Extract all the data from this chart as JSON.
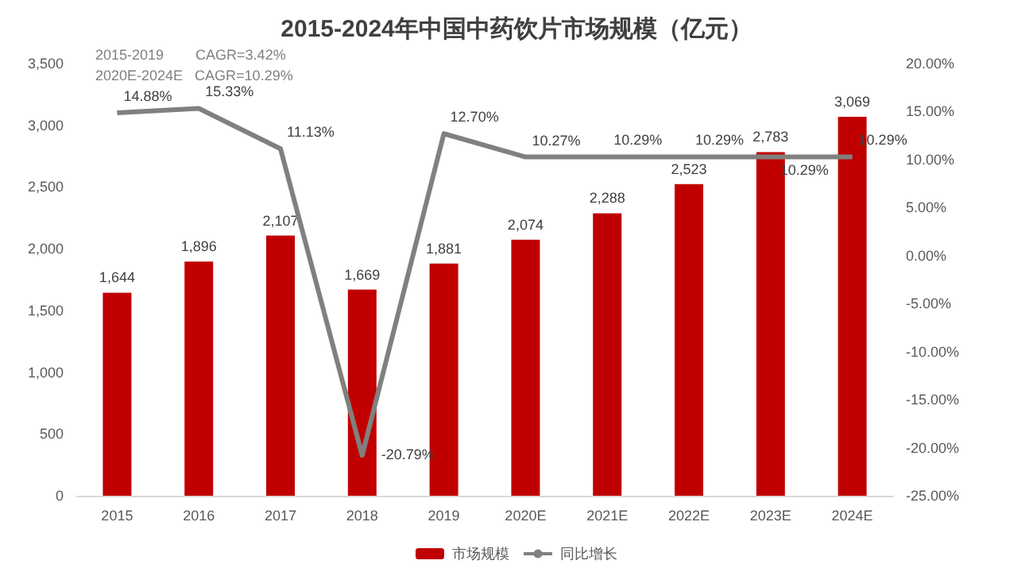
{
  "chart_data": {
    "type": "bar",
    "title": "2015-2024年中国中药饮片市场规模（亿元）",
    "categories": [
      "2015",
      "2016",
      "2017",
      "2018",
      "2019",
      "2020E",
      "2021E",
      "2022E",
      "2023E",
      "2024E"
    ],
    "series": [
      {
        "name": "市场规模",
        "color": "#c00000",
        "values": [
          1644,
          1896,
          2107,
          1669,
          1881,
          2074,
          2288,
          2523,
          2783,
          3069
        ],
        "value_labels": [
          "1,644",
          "1,896",
          "2,107",
          "1,669",
          "1,881",
          "2,074",
          "2,288",
          "2,523",
          "2,783",
          "3,069"
        ]
      },
      {
        "name": "同比增长",
        "type": "line",
        "axis": "y2",
        "color": "#808080",
        "values": [
          14.88,
          15.33,
          11.13,
          -20.79,
          12.7,
          10.27,
          10.29,
          10.29,
          10.29,
          10.29
        ],
        "value_labels": [
          "14.88%",
          "15.33%",
          "11.13%",
          "-20.79%",
          "12.70%",
          "10.27%",
          "10.29%",
          "10.29%",
          "10.29%",
          "10.29%"
        ]
      }
    ],
    "ylim": [
      0,
      3500
    ],
    "yticks": [
      {
        "value": 0,
        "label": "0"
      },
      {
        "value": 500,
        "label": "500"
      },
      {
        "value": 1000,
        "label": "1,000"
      },
      {
        "value": 1500,
        "label": "1,500"
      },
      {
        "value": 2000,
        "label": "2,000"
      },
      {
        "value": 2500,
        "label": "2,500"
      },
      {
        "value": 3000,
        "label": "3,000"
      },
      {
        "value": 3500,
        "label": "3,500"
      }
    ],
    "y2lim": [
      -25,
      20
    ],
    "y2ticks": [
      {
        "value": -25,
        "label": "-25.00%"
      },
      {
        "value": -20,
        "label": "-20.00%"
      },
      {
        "value": -15,
        "label": "-15.00%"
      },
      {
        "value": -10,
        "label": "-10.00%"
      },
      {
        "value": -5,
        "label": "-5.00%"
      },
      {
        "value": 0,
        "label": "0.00%"
      },
      {
        "value": 5,
        "label": "5.00%"
      },
      {
        "value": 10,
        "label": "10.00%"
      },
      {
        "value": 15,
        "label": "15.00%"
      },
      {
        "value": 20,
        "label": "20.00%"
      }
    ],
    "annotations": [
      "2015-2019        CAGR=3.42%",
      "2020E-2024E   CAGR=10.29%"
    ],
    "legend": "bottom",
    "marker": "none",
    "line_style": "solid"
  }
}
